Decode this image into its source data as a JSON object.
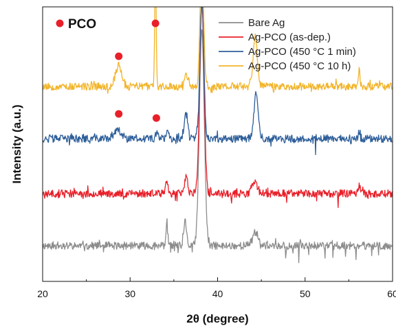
{
  "chart_data": {
    "type": "line",
    "xlabel": "2θ (degree)",
    "ylabel": "Intensity (a.u.)",
    "xlim": [
      20,
      60
    ],
    "ylim": [
      0,
      100
    ],
    "xticks": [
      20,
      30,
      40,
      50,
      60
    ],
    "grid": false,
    "legend_position": "top-right",
    "y_axis_ticks": false,
    "series": [
      {
        "name": "Bare Ag",
        "color": "#8c8c8c",
        "baseline": 13,
        "noise": 1.4,
        "seed": 11,
        "peaks": [
          {
            "x": 34.2,
            "height": 7,
            "width": 0.12
          },
          {
            "x": 36.3,
            "height": 9,
            "width": 0.15
          },
          {
            "x": 38.2,
            "height": 78,
            "width": 0.28
          },
          {
            "x": 44.3,
            "height": 5,
            "width": 0.35
          }
        ],
        "dips": [
          {
            "x": 47.8,
            "depth": 5
          },
          {
            "x": 48.6,
            "depth": 4
          },
          {
            "x": 49.3,
            "depth": 5
          },
          {
            "x": 50.4,
            "depth": 4
          },
          {
            "x": 52.3,
            "depth": 5
          },
          {
            "x": 53.2,
            "depth": 4
          },
          {
            "x": 54.6,
            "depth": 5
          },
          {
            "x": 55.8,
            "depth": 4
          },
          {
            "x": 57.6,
            "depth": 5
          },
          {
            "x": 58.4,
            "depth": 4
          }
        ]
      },
      {
        "name": "Ag-PCO (as-dep.)",
        "color": "#e8202a",
        "baseline": 32,
        "noise": 1.4,
        "seed": 23,
        "peaks": [
          {
            "x": 34.2,
            "height": 4,
            "width": 0.15
          },
          {
            "x": 36.4,
            "height": 6,
            "width": 0.18
          },
          {
            "x": 38.2,
            "height": 70,
            "width": 0.25
          },
          {
            "x": 44.2,
            "height": 4,
            "width": 0.3
          },
          {
            "x": 56.2,
            "height": 3,
            "width": 0.1
          }
        ],
        "dips": [
          {
            "x": 41.6,
            "depth": 4
          },
          {
            "x": 47.9,
            "depth": 4
          },
          {
            "x": 51.3,
            "depth": 3
          },
          {
            "x": 53.8,
            "depth": 4
          },
          {
            "x": 57.2,
            "depth": 3
          }
        ]
      },
      {
        "name": "Ag-PCO (450 °C 1 min)",
        "color": "#2d5e9a",
        "baseline": 52,
        "noise": 1.4,
        "seed": 37,
        "peaks": [
          {
            "x": 28.6,
            "height": 3,
            "width": 0.4
          },
          {
            "x": 33.1,
            "height": 3,
            "width": 0.15
          },
          {
            "x": 34.3,
            "height": 4,
            "width": 0.15
          },
          {
            "x": 36.4,
            "height": 9,
            "width": 0.22
          },
          {
            "x": 38.2,
            "height": 50,
            "width": 0.22
          },
          {
            "x": 44.4,
            "height": 16,
            "width": 0.25
          },
          {
            "x": 56.2,
            "height": 3,
            "width": 0.1
          }
        ],
        "dips": [
          {
            "x": 51.2,
            "depth": 6
          }
        ]
      },
      {
        "name": "Ag-PCO (450 °C 10 h)",
        "color": "#f2b42a",
        "baseline": 71,
        "noise": 1.4,
        "seed": 53,
        "peaks": [
          {
            "x": 28.7,
            "height": 8,
            "width": 0.35
          },
          {
            "x": 32.9,
            "height": 45,
            "width": 0.08
          },
          {
            "x": 36.4,
            "height": 4,
            "width": 0.25
          },
          {
            "x": 38.2,
            "height": 45,
            "width": 0.2
          },
          {
            "x": 44.3,
            "height": 18,
            "width": 0.25
          },
          {
            "x": 56.2,
            "height": 6,
            "width": 0.08
          }
        ],
        "dips": []
      }
    ],
    "markers": [
      {
        "label": "PCO-peak",
        "x": 32.9,
        "y": 94
      },
      {
        "label": "PCO-peak",
        "x": 28.7,
        "y": 82
      },
      {
        "label": "PCO-peak",
        "x": 28.7,
        "y": 61
      },
      {
        "label": "PCO-peak",
        "x": 33.0,
        "y": 59.5
      }
    ],
    "marker_color": "#e8202a",
    "marker_legend_label": "PCO"
  }
}
